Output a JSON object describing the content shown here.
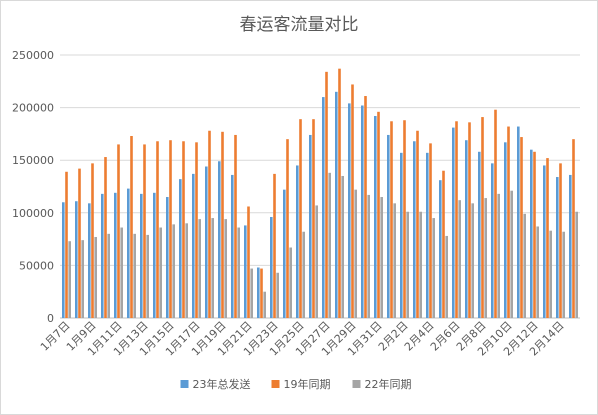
{
  "chart_data": {
    "type": "bar",
    "title": "春运客流量对比",
    "xlabel": "",
    "ylabel": "",
    "ylim": [
      0,
      250000
    ],
    "yticks": [
      "0",
      "50000",
      "100000",
      "150000",
      "200000",
      "250000"
    ],
    "grid": true,
    "legend_position": "bottom",
    "categories": [
      "1月7日",
      "1月8日",
      "1月9日",
      "1月10日",
      "1月11日",
      "1月12日",
      "1月13日",
      "1月14日",
      "1月15日",
      "1月16日",
      "1月17日",
      "1月18日",
      "1月19日",
      "1月20日",
      "1月21日",
      "1月22日",
      "1月23日",
      "1月24日",
      "1月25日",
      "1月26日",
      "1月27日",
      "1月28日",
      "1月29日",
      "1月30日",
      "1月31日",
      "2月1日",
      "2月2日",
      "2月3日",
      "2月4日",
      "2月5日",
      "2月6日",
      "2月7日",
      "2月8日",
      "2月9日",
      "2月10日",
      "2月11日",
      "2月12日",
      "2月13日",
      "2月14日",
      "2月15日"
    ],
    "xtick_labels": [
      "1月7日",
      "1月9日",
      "1月11日",
      "1月13日",
      "1月15日",
      "1月17日",
      "1月19日",
      "1月21日",
      "1月23日",
      "1月25日",
      "1月27日",
      "1月29日",
      "1月31日",
      "2月2日",
      "2月4日",
      "2月6日",
      "2月8日",
      "2月10日",
      "2月12日",
      "2月14日"
    ],
    "series": [
      {
        "name": "23年总发送",
        "color": "#5b9bd5",
        "values": [
          110000,
          111000,
          109000,
          118000,
          119000,
          123000,
          118000,
          119000,
          115000,
          132000,
          137000,
          144000,
          149000,
          136000,
          88000,
          48000,
          96000,
          122000,
          145000,
          174000,
          210000,
          215000,
          204000,
          202000,
          192000,
          174000,
          157000,
          168000,
          157000,
          131000,
          181000,
          169000,
          158000,
          147000,
          167000,
          182000,
          160000,
          145000,
          134000,
          136000
        ]
      },
      {
        "name": "19年同期",
        "color": "#ed7d31",
        "values": [
          139000,
          142000,
          147000,
          153000,
          165000,
          173000,
          165000,
          168000,
          169000,
          168000,
          167000,
          178000,
          177000,
          174000,
          106000,
          47000,
          137000,
          170000,
          189000,
          189000,
          234000,
          237000,
          222000,
          211000,
          196000,
          187000,
          188000,
          178000,
          166000,
          140000,
          187000,
          186000,
          191000,
          198000,
          182000,
          172000,
          158000,
          152000,
          147000,
          170000
        ]
      },
      {
        "name": "22年同期",
        "color": "#a5a5a5",
        "values": [
          73000,
          74000,
          77000,
          80000,
          86000,
          80000,
          79000,
          86000,
          89000,
          90000,
          94000,
          95000,
          94000,
          86000,
          47000,
          25000,
          43000,
          67000,
          82000,
          107000,
          138000,
          135000,
          122000,
          117000,
          115000,
          109000,
          101000,
          101000,
          95000,
          78000,
          112000,
          109000,
          114000,
          118000,
          121000,
          99000,
          87000,
          83000,
          82000,
          101000
        ]
      }
    ]
  }
}
